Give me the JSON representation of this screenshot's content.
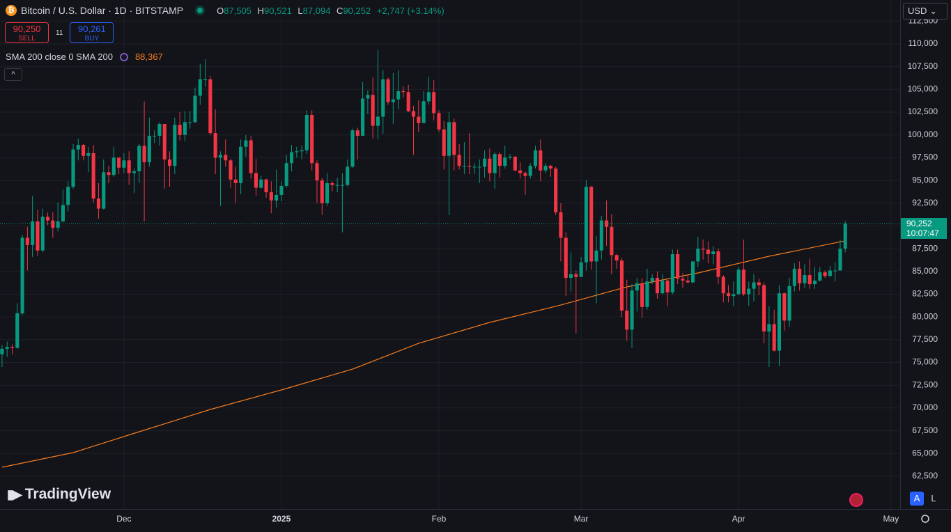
{
  "header": {
    "symbol": "Bitcoin / U.S. Dollar · 1D · BITSTAMP",
    "ohlc": [
      {
        "label": "O",
        "value": "87,505"
      },
      {
        "label": "H",
        "value": "90,521"
      },
      {
        "label": "L",
        "value": "87,094"
      },
      {
        "label": "C",
        "value": "90,252"
      }
    ],
    "change": "+2,747 (+3.14%)"
  },
  "trade": {
    "sell_price": "90,250",
    "sell": "SELL",
    "spread": "11",
    "buy_price": "90,261",
    "buy": "BUY"
  },
  "indicator": {
    "name": "SMA 200 close 0 SMA 200",
    "value": "88,367"
  },
  "currency": "USD",
  "scale_buttons": [
    "A",
    "L"
  ],
  "logo": "TradingView",
  "chart_data": {
    "type": "candlestick",
    "up_color": "#089981",
    "down_color": "#f23645",
    "open": [
      75900,
      76500,
      76700,
      76600,
      80400,
      88700,
      87900,
      90500,
      87300,
      91000,
      90600,
      89800,
      90500,
      92300,
      94300,
      98400,
      98900,
      97700,
      98000,
      93000,
      91900,
      95900,
      95600,
      97500,
      96400,
      97200,
      95800,
      96000,
      98800,
      97000,
      99900,
      99900,
      101200,
      97300,
      96600,
      101100,
      100000,
      101400,
      101400,
      104300,
      106100,
      106100,
      100200,
      97500,
      97800,
      97200,
      95100,
      94700,
      98700,
      99400,
      95800,
      94200,
      95100,
      93700,
      92800,
      93400,
      94400,
      96900,
      98100,
      98200,
      98300,
      102200,
      96900,
      95000,
      92500,
      94700,
      94500,
      94500,
      94500,
      96500,
      100500,
      99900,
      104000,
      104400,
      101000,
      102000,
      106100,
      103600,
      103900,
      104800,
      104700,
      102600,
      102000,
      101300,
      103700,
      104700,
      102400,
      100600,
      97700,
      101400,
      97800,
      96600,
      96600,
      96500,
      96500,
      96500,
      97400,
      95800,
      97900,
      96600,
      97500,
      97600,
      96100,
      95800,
      95500,
      96600,
      98300,
      96100,
      96600,
      96300,
      91500,
      88700,
      84300,
      84700,
      84400,
      86000,
      94300,
      86100,
      87300,
      90600,
      89900,
      86800,
      86200,
      80700,
      78600,
      82900,
      83700,
      81100,
      83900,
      84300,
      82600,
      84000,
      82700,
      86900,
      84200,
      84000,
      83800,
      86100,
      87500,
      87400,
      86900,
      87200,
      84400,
      82600,
      82300,
      82500,
      85200,
      82500,
      83100,
      83800,
      83500,
      78400,
      79200,
      76300,
      82600,
      79600,
      83400,
      85300,
      83700,
      84600,
      83600,
      84000,
      84900,
      84500,
      85100,
      85100,
      87505
    ],
    "high": [
      76900,
      77300,
      77000,
      81500,
      89000,
      89900,
      93300,
      91800,
      91900,
      91500,
      91500,
      92600,
      94000,
      94900,
      99000,
      99600,
      99000,
      98700,
      98900,
      94700,
      97300,
      96600,
      98700,
      97500,
      98000,
      98200,
      96300,
      99000,
      103700,
      101900,
      100500,
      101400,
      101200,
      98200,
      101900,
      102500,
      102600,
      102600,
      105200,
      107800,
      108300,
      106500,
      102800,
      98200,
      99500,
      97400,
      96500,
      99500,
      100000,
      99900,
      97400,
      95500,
      95200,
      94900,
      96200,
      94900,
      97800,
      98900,
      98700,
      98800,
      102700,
      102700,
      97200,
      95300,
      95800,
      94900,
      95300,
      95800,
      97300,
      100700,
      100800,
      105800,
      104900,
      106300,
      109300,
      107100,
      106300,
      106800,
      107100,
      105300,
      105500,
      103200,
      103800,
      104800,
      106400,
      106000,
      102700,
      101500,
      102500,
      101800,
      99000,
      99200,
      100200,
      96900,
      97300,
      98300,
      98500,
      98100,
      98100,
      98800,
      97900,
      97700,
      97000,
      96000,
      96900,
      98800,
      99500,
      96900,
      96700,
      96500,
      92500,
      89300,
      87100,
      85100,
      86600,
      95000,
      94400,
      88900,
      91100,
      92800,
      91300,
      86900,
      86500,
      84100,
      83600,
      84300,
      84300,
      85300,
      84700,
      85000,
      84700,
      84100,
      87400,
      87400,
      84800,
      84500,
      86100,
      88800,
      88500,
      88300,
      87800,
      87500,
      84600,
      83500,
      83900,
      85500,
      88500,
      83900,
      84700,
      84200,
      83800,
      81200,
      80800,
      83500,
      82700,
      84300,
      85900,
      86100,
      85800,
      86400,
      85500,
      85500,
      85100,
      85600,
      86000,
      88500,
      90521
    ],
    "low": [
      74500,
      75600,
      75900,
      76500,
      80200,
      85100,
      86600,
      86700,
      87100,
      90100,
      88700,
      89400,
      90400,
      91600,
      94100,
      97200,
      97200,
      95900,
      92600,
      90800,
      91800,
      94700,
      95400,
      95700,
      95800,
      94500,
      93600,
      94700,
      90500,
      96500,
      99100,
      98800,
      94100,
      94300,
      95700,
      99400,
      99300,
      100700,
      101300,
      103300,
      105300,
      100000,
      95700,
      92200,
      96500,
      94200,
      92500,
      93500,
      97600,
      95200,
      93300,
      94100,
      93100,
      91400,
      92000,
      92700,
      94200,
      96000,
      97500,
      97300,
      97900,
      96100,
      92500,
      91200,
      92200,
      93800,
      93700,
      89300,
      94300,
      96400,
      97300,
      99900,
      102300,
      99600,
      99500,
      100100,
      103300,
      101200,
      102800,
      104100,
      102500,
      97800,
      100300,
      101300,
      103300,
      101600,
      100300,
      96200,
      91200,
      96100,
      96200,
      95700,
      95700,
      95700,
      94700,
      95300,
      94900,
      94100,
      95300,
      96300,
      97300,
      96000,
      95200,
      93400,
      95200,
      96300,
      94900,
      95800,
      95400,
      91200,
      86100,
      82300,
      82800,
      78200,
      84400,
      85100,
      85200,
      81500,
      86300,
      87800,
      84700,
      85300,
      80000,
      77400,
      76600,
      80600,
      79900,
      80800,
      83600,
      82000,
      82500,
      81200,
      82500,
      83600,
      83200,
      83700,
      83700,
      85500,
      86300,
      85900,
      85800,
      83600,
      81600,
      81600,
      81200,
      82400,
      82300,
      81200,
      81700,
      82400,
      77100,
      74500,
      76200,
      74600,
      78500,
      78900,
      82800,
      82900,
      83200,
      83100,
      83100,
      83900,
      84300,
      84400,
      83900,
      85100,
      87094
    ],
    "close": [
      76500,
      76700,
      76600,
      80400,
      88700,
      87900,
      90500,
      87300,
      91000,
      90600,
      89800,
      90500,
      92300,
      94300,
      98400,
      98900,
      97700,
      98000,
      93000,
      91900,
      95900,
      95600,
      97500,
      96400,
      97200,
      95800,
      96000,
      98800,
      97000,
      99900,
      99900,
      101200,
      97300,
      96600,
      101100,
      100000,
      101400,
      101400,
      104300,
      106100,
      106100,
      100200,
      97500,
      97800,
      97200,
      95100,
      94700,
      98700,
      99400,
      95800,
      94200,
      95100,
      93700,
      92800,
      93400,
      94400,
      96900,
      98100,
      98200,
      98300,
      102200,
      96900,
      95000,
      92500,
      94700,
      94500,
      94500,
      94500,
      96500,
      100500,
      99900,
      104000,
      104400,
      101000,
      102000,
      106100,
      103600,
      103900,
      104800,
      104700,
      102600,
      102000,
      101300,
      103700,
      104700,
      102400,
      100600,
      97700,
      101400,
      97800,
      96600,
      96600,
      96500,
      96500,
      96500,
      97400,
      95800,
      97900,
      96600,
      97500,
      97600,
      96100,
      95800,
      95500,
      96600,
      98300,
      96100,
      96600,
      96300,
      91500,
      88700,
      84300,
      84700,
      84400,
      86000,
      94300,
      86100,
      87300,
      90600,
      89900,
      86800,
      86200,
      80700,
      78600,
      82900,
      83700,
      81100,
      83900,
      84300,
      82600,
      84000,
      82700,
      86900,
      84200,
      84000,
      83800,
      86100,
      87500,
      87400,
      86900,
      87200,
      84400,
      82600,
      82300,
      82500,
      85200,
      82500,
      83100,
      83800,
      83500,
      78400,
      79200,
      76300,
      82600,
      79600,
      83400,
      85300,
      83700,
      84600,
      83600,
      84000,
      84900,
      84500,
      85100,
      85100,
      87505,
      90252
    ],
    "sma": {
      "color": "#f57c1f",
      "x": [
        0,
        14,
        27,
        41,
        55,
        69,
        82,
        96,
        110,
        123,
        137,
        151,
        166
      ],
      "values": [
        63490,
        65100,
        67390,
        69840,
        71980,
        74270,
        77100,
        79400,
        81310,
        83300,
        84830,
        86670,
        88367
      ]
    },
    "last_price_label": "90,252",
    "countdown": "10:07:47",
    "xlim": [
      -0.4,
      176.8
    ],
    "xticks": [
      {
        "value": 24,
        "label": "Dec"
      },
      {
        "value": 55,
        "label": "2025"
      },
      {
        "value": 86,
        "label": "Feb"
      },
      {
        "value": 114,
        "label": "Mar"
      },
      {
        "value": 145,
        "label": "Apr"
      },
      {
        "value": 175,
        "label": "May"
      }
    ],
    "ylim": [
      58900,
      114820
    ],
    "yticks": [
      {
        "value": 62500,
        "label": "62,500"
      },
      {
        "value": 65000,
        "label": "65,000"
      },
      {
        "value": 67500,
        "label": "67,500"
      },
      {
        "value": 70000,
        "label": "70,000"
      },
      {
        "value": 72500,
        "label": "72,500"
      },
      {
        "value": 75000,
        "label": "75,000"
      },
      {
        "value": 77500,
        "label": "77,500"
      },
      {
        "value": 80000,
        "label": "80,000"
      },
      {
        "value": 82500,
        "label": "82,500"
      },
      {
        "value": 85000,
        "label": "85,000"
      },
      {
        "value": 87500,
        "label": "87,500"
      },
      {
        "value": 90000,
        "label": "90,000"
      },
      {
        "value": 92500,
        "label": "92,500"
      },
      {
        "value": 95000,
        "label": "95,000"
      },
      {
        "value": 97500,
        "label": "97,500"
      },
      {
        "value": 100000,
        "label": "100,000"
      },
      {
        "value": 102500,
        "label": "102,500"
      },
      {
        "value": 105000,
        "label": "105,000"
      },
      {
        "value": 107500,
        "label": "107,500"
      },
      {
        "value": 110000,
        "label": "110,000"
      },
      {
        "value": 112500,
        "label": "112,500"
      }
    ],
    "grid": true
  }
}
